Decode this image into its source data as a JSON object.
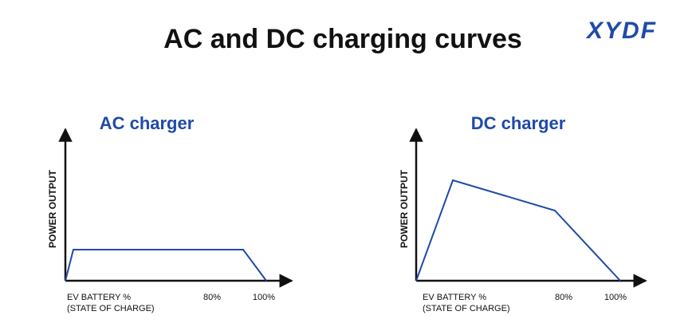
{
  "title": "AC and DC charging curves",
  "logo": "XYDF",
  "panels": [
    {
      "title": "AC charger",
      "y_label": "POWER OUTPUT",
      "x_label": [
        "EV BATTERY %",
        "(STATE OF CHARGE)"
      ],
      "x_ticks": [
        "80%",
        "100%"
      ]
    },
    {
      "title": "DC charger",
      "y_label": "POWER OUTPUT",
      "x_label": [
        "EV BATTERY %",
        "(STATE OF CHARGE)"
      ],
      "x_ticks": [
        "80%",
        "100%"
      ]
    }
  ]
}
